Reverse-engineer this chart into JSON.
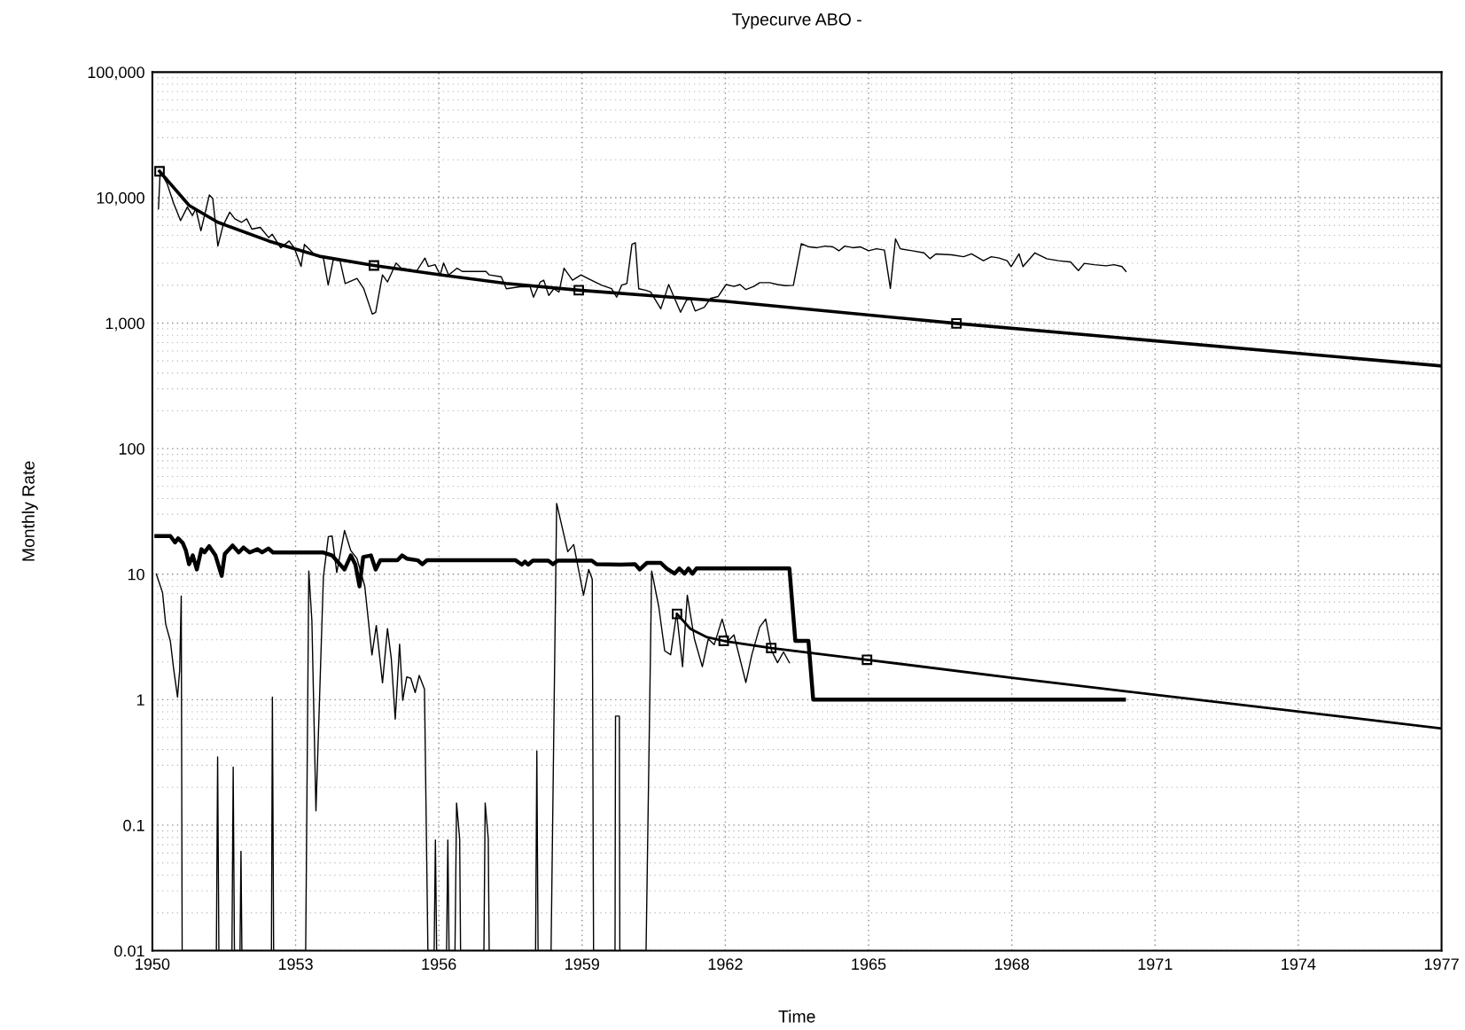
{
  "chart_data": {
    "type": "line",
    "title": "Typecurve ABO -",
    "xlabel": "Time",
    "ylabel": "Monthly Rate",
    "log": "y",
    "grid": true,
    "marker": "none",
    "line_style": "solid",
    "xlim": [
      1950,
      1977
    ],
    "xticks": [
      1950,
      1953,
      1956,
      1959,
      1962,
      1965,
      1968,
      1971,
      1974,
      1977
    ],
    "ylim": [
      0.01,
      100000
    ],
    "yticks": [
      {
        "value": 0.01,
        "label": "0.01"
      },
      {
        "value": 0.1,
        "label": "0.1"
      },
      {
        "value": 1,
        "label": "1"
      },
      {
        "value": 10,
        "label": "10"
      },
      {
        "value": 100,
        "label": "100"
      },
      {
        "value": 1000,
        "label": "1,000"
      },
      {
        "value": 10000,
        "label": "10,000"
      },
      {
        "value": 100000,
        "label": "100,000"
      }
    ],
    "series": [
      {
        "color": "#000000",
        "x": [
          1950.128,
          1950.164,
          1950.306,
          1950.448,
          1950.59,
          1950.732,
          1950.839,
          1950.91,
          1951.017,
          1951.194,
          1951.265,
          1951.372,
          1951.479,
          1951.621,
          1951.727,
          1951.87,
          1951.976,
          1952.083,
          1952.26,
          1952.438,
          1952.509,
          1952.687,
          1952.865,
          1952.971,
          1953.114,
          1953.185,
          1953.362,
          1953.469,
          1953.576,
          1953.682,
          1953.789,
          1953.931,
          1954.038,
          1954.286,
          1954.428,
          1954.606,
          1954.677,
          1954.819,
          1954.926,
          1955.104,
          1955.21,
          1955.424,
          1955.53,
          1955.708,
          1955.779,
          1955.921,
          1956.028,
          1956.099,
          1956.205,
          1956.383,
          1956.49,
          1956.703,
          1956.987,
          1957.058,
          1957.307,
          1957.414,
          1957.698,
          1957.911,
          1957.982,
          1958.125,
          1958.196,
          1958.302,
          1958.409,
          1958.516,
          1958.622,
          1958.8,
          1958.978,
          1959.12,
          1959.404,
          1959.617,
          1959.724,
          1959.831,
          1959.937,
          1960.044,
          1960.115,
          1960.186,
          1960.328,
          1960.435,
          1960.648,
          1960.813,
          1961.062,
          1961.186,
          1961.269,
          1961.369,
          1961.56,
          1961.684,
          1961.85,
          1962.016,
          1962.181,
          1962.306,
          1962.43,
          1962.596,
          1962.72,
          1962.928,
          1963.093,
          1963.259,
          1963.425,
          1963.591,
          1963.757,
          1963.922,
          1964.088,
          1964.254,
          1964.378,
          1964.503,
          1964.669,
          1964.834,
          1965.0,
          1965.166,
          1965.332,
          1965.456,
          1965.564,
          1965.664,
          1965.912,
          1966.161,
          1966.285,
          1966.41,
          1966.741,
          1966.99,
          1967.156,
          1967.405,
          1967.57,
          1967.736,
          1967.902,
          1967.985,
          1968.151,
          1968.234,
          1968.483,
          1968.731,
          1968.98,
          1969.229,
          1969.395,
          1969.519,
          1969.726,
          1969.975,
          1970.141,
          1970.307,
          1970.39
        ],
        "values": [
          8150,
          16200,
          13000,
          8950,
          6560,
          8410,
          7200,
          8150,
          5440,
          10500,
          9840,
          4110,
          5970,
          7660,
          6770,
          6360,
          6770,
          5610,
          5790,
          4800,
          5110,
          3980,
          4510,
          3980,
          2830,
          4240,
          3630,
          3410,
          3410,
          2010,
          3200,
          3140,
          2070,
          2270,
          1880,
          1180,
          1220,
          2420,
          2130,
          3010,
          2740,
          2660,
          2580,
          3300,
          2830,
          2920,
          2420,
          3010,
          2420,
          2740,
          2580,
          2580,
          2580,
          2420,
          2340,
          1880,
          1950,
          1950,
          1610,
          2130,
          2200,
          1660,
          1880,
          1770,
          2740,
          2200,
          2420,
          2270,
          2010,
          1880,
          1610,
          2010,
          2070,
          4240,
          4370,
          1880,
          1830,
          1770,
          1300,
          2030,
          1220,
          1520,
          1570,
          1250,
          1340,
          1570,
          1630,
          2030,
          1960,
          2030,
          1850,
          1960,
          2100,
          2100,
          2030,
          1990,
          2000,
          4290,
          4050,
          3990,
          4110,
          4050,
          3770,
          4110,
          3990,
          4050,
          3770,
          3910,
          3820,
          1890,
          4690,
          3910,
          3770,
          3630,
          3260,
          3560,
          3500,
          3380,
          3560,
          3140,
          3380,
          3300,
          3140,
          2820,
          3560,
          2820,
          3630,
          3260,
          3140,
          3070,
          2620,
          2990,
          2920,
          2860,
          2920,
          2820,
          2580
        ]
      },
      {
        "color": "#000000",
        "x": [
          1950.15,
          1950.77,
          1951.37,
          1952.44,
          1953.5,
          1954.64,
          1956.06,
          1957.41,
          1958.93,
          1962.02,
          1966.84,
          1977
        ],
        "values": [
          16200,
          8670,
          6360,
          4510,
          3410,
          2880,
          2420,
          2070,
          1830,
          1490,
          995,
          456
        ]
      },
      {
        "color": "#000000",
        "x": [
          1950.084,
          1950.377,
          1950.475,
          1950.54,
          1950.637,
          1950.703,
          1950.768,
          1950.846,
          1950.931,
          1951.028,
          1951.093,
          1951.191,
          1951.321,
          1951.452,
          1951.517,
          1951.68,
          1951.81,
          1951.908,
          1952.038,
          1952.201,
          1952.299,
          1952.429,
          1952.527,
          1953.569,
          1953.765,
          1954.025,
          1954.156,
          1954.253,
          1954.338,
          1954.416,
          1954.579,
          1954.677,
          1954.775,
          1955.133,
          1955.231,
          1955.328,
          1955.556,
          1955.654,
          1955.752,
          1957.608,
          1957.739,
          1957.804,
          1957.869,
          1957.967,
          1958.293,
          1958.39,
          1958.488,
          1959.204,
          1959.302,
          1959.811,
          1960.109,
          1960.208,
          1960.357,
          1960.648,
          1960.772,
          1960.938,
          1961.037,
          1961.145,
          1961.228,
          1961.311,
          1961.394,
          1963.342,
          1963.466,
          1963.74,
          1963.84,
          1970.348
        ],
        "values": [
          20.1,
          20.1,
          17.9,
          19.3,
          17.7,
          15.4,
          12.0,
          14.1,
          10.9,
          15.8,
          14.9,
          16.7,
          14.1,
          9.7,
          14.5,
          16.9,
          14.9,
          16.3,
          14.9,
          15.8,
          14.9,
          16.0,
          14.9,
          14.9,
          14.1,
          10.9,
          14.1,
          11.9,
          8.0,
          13.7,
          14.1,
          10.9,
          12.9,
          12.9,
          14.1,
          13.3,
          12.9,
          12.0,
          12.9,
          12.9,
          11.9,
          12.6,
          11.9,
          12.8,
          12.8,
          12.0,
          12.8,
          12.8,
          12.0,
          11.9,
          12.0,
          10.9,
          12.3,
          12.3,
          11.1,
          10.1,
          11.1,
          10.1,
          11.1,
          10.1,
          11.1,
          11.1,
          2.94,
          2.94,
          1,
          1
        ]
      },
      {
        "color": "#000000",
        "x": [
          1950.084,
          1950.214,
          1950.279,
          1950.377,
          1950.442,
          1950.527,
          1950.572,
          1950.605,
          1950.624,
          1951.341,
          1951.367,
          1951.393,
          1951.667,
          1951.693,
          1951.719,
          1951.836,
          1951.856,
          1951.875,
          1952.494,
          1952.514,
          1952.54,
          1953.211,
          1953.276,
          1953.341,
          1953.426,
          1953.491,
          1953.582,
          1953.686,
          1953.765,
          1953.862,
          1954.025,
          1954.156,
          1954.286,
          1954.449,
          1954.599,
          1954.69,
          1954.82,
          1954.924,
          1955.003,
          1955.087,
          1955.178,
          1955.244,
          1955.328,
          1955.413,
          1955.504,
          1955.589,
          1955.699,
          1955.771,
          1955.902,
          1955.928,
          1955.954,
          1956.162,
          1956.188,
          1956.214,
          1956.338,
          1956.371,
          1956.436,
          1956.455,
          1956.944,
          1956.97,
          1957.035,
          1957.054,
          1958.026,
          1958.052,
          1958.078,
          1958.35,
          1958.467,
          1958.7,
          1958.824,
          1959.03,
          1959.139,
          1959.213,
          1959.24,
          1959.69,
          1959.7,
          1959.78,
          1959.79,
          1960.34,
          1960.457,
          1960.606,
          1960.73,
          1960.855,
          1960.98,
          1961.104,
          1961.203,
          1961.352,
          1961.518,
          1961.643,
          1961.767,
          1961.933,
          1962.057,
          1962.181,
          1962.43,
          1962.555,
          1962.72,
          1962.845,
          1962.97,
          1963.093,
          1963.218,
          1963.342
        ],
        "values": [
          10.0,
          7.1,
          4.0,
          2.93,
          1.8,
          1.05,
          1.71,
          6.7,
          0.01,
          0.01,
          0.35,
          0.01,
          0.01,
          0.29,
          0.01,
          0.01,
          0.062,
          0.01,
          0.01,
          1.05,
          0.01,
          0.01,
          10.6,
          4.26,
          0.13,
          0.77,
          9.5,
          19.9,
          20.1,
          10.3,
          22.3,
          15.4,
          13.3,
          8.0,
          2.27,
          3.9,
          1.36,
          3.68,
          2.14,
          0.7,
          2.77,
          0.99,
          1.52,
          1.48,
          1.14,
          1.56,
          1.21,
          0.01,
          0.01,
          0.076,
          0.01,
          0.01,
          0.076,
          0.01,
          0.01,
          0.15,
          0.078,
          0.01,
          0.01,
          0.15,
          0.078,
          0.01,
          0.01,
          0.39,
          0.01,
          0.01,
          36.6,
          15.1,
          17.2,
          6.8,
          10.9,
          9.1,
          0.01,
          0.01,
          0.74,
          0.74,
          0.01,
          0.01,
          10.6,
          5.5,
          2.45,
          2.28,
          4.9,
          1.83,
          6.8,
          3.05,
          1.83,
          3.05,
          2.74,
          4.39,
          2.94,
          3.28,
          1.37,
          2.28,
          3.79,
          4.39,
          2.45,
          1.97,
          2.4,
          1.97
        ]
      },
      {
        "color": "#000000",
        "x": [
          1960.988,
          1961.27,
          1961.6,
          1961.966,
          1962.961,
          1964.967,
          1968.07,
          1977
        ],
        "values": [
          4.82,
          3.66,
          3.16,
          2.94,
          2.58,
          2.08,
          1.48,
          0.59
        ]
      },
      {
        "type": "scatter",
        "marker": "square",
        "color": "#000000",
        "x": [
          1950.15,
          1954.64,
          1958.93,
          1966.84,
          1960.988,
          1961.966,
          1962.961,
          1964.967
        ],
        "values": [
          16200,
          2880,
          1830,
          995,
          4.82,
          2.94,
          2.58,
          2.08
        ]
      }
    ]
  }
}
